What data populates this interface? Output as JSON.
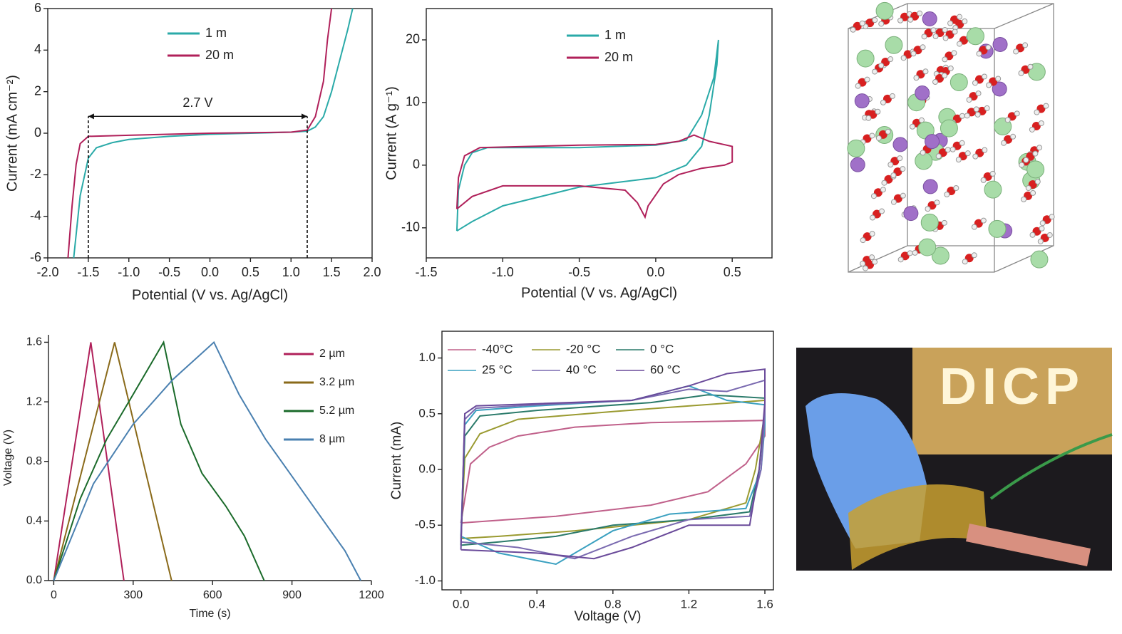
{
  "chart_data": [
    {
      "type": "line",
      "xlabel": "Potential (V vs. Ag/AgCl)",
      "ylabel": "Current (mA cm⁻²)",
      "xlim": [
        -2,
        2
      ],
      "ylim": [
        -6,
        6
      ],
      "xticks": [
        {
          "value": -2,
          "label": "-2.0"
        },
        -1.5,
        {
          "value": -1,
          "label": "-1.0"
        },
        -0.5,
        {
          "value": 0,
          "label": "0.0"
        },
        0.5,
        {
          "value": 1,
          "label": "1.0"
        },
        1.5,
        {
          "value": 2,
          "label": "2.0"
        }
      ],
      "yticks": [
        -6,
        -4,
        -2,
        0,
        2,
        4,
        6
      ],
      "legend": "upper left",
      "annotation": {
        "text": "2.7 V",
        "x_start": -1.5,
        "x_end": 1.2,
        "y": 0.4
      },
      "series": [
        {
          "name": "1 m",
          "color": "#2aaaa8",
          "x": [
            -1.68,
            -1.6,
            -1.5,
            -1.4,
            -1.2,
            -1.0,
            -0.5,
            0,
            0.5,
            1.0,
            1.2,
            1.3,
            1.4,
            1.5,
            1.6,
            1.7,
            1.76
          ],
          "values": [
            -6,
            -3,
            -1.2,
            -0.7,
            -0.45,
            -0.3,
            -0.15,
            -0.05,
            0,
            0.05,
            0.1,
            0.3,
            0.8,
            2,
            3.5,
            5,
            6
          ]
        },
        {
          "name": "20 m",
          "color": "#b0205a",
          "x": [
            -1.75,
            -1.7,
            -1.65,
            -1.6,
            -1.5,
            -1.0,
            0,
            1.0,
            1.2,
            1.3,
            1.4,
            1.45,
            1.5
          ],
          "values": [
            -6,
            -3.5,
            -1.5,
            -0.5,
            -0.15,
            -0.1,
            0,
            0.05,
            0.15,
            0.8,
            2.5,
            4.5,
            6
          ]
        }
      ]
    },
    {
      "type": "line",
      "xlabel": "Potential (V vs. Ag/AgCl)",
      "ylabel": "Current (A g⁻¹)",
      "xlim": [
        -1.5,
        0.76
      ],
      "ylim": [
        -14.8,
        25
      ],
      "xticks": [
        -1.5,
        {
          "value": -1,
          "label": "-1.0"
        },
        -0.5,
        {
          "value": 0,
          "label": "0.0"
        },
        0.5
      ],
      "yticks": [
        -10,
        0,
        10,
        20
      ],
      "legend": "upper left",
      "series": [
        {
          "name": "1 m",
          "color": "#2aaaa8",
          "x": [
            -1.3,
            -1.29,
            -1.25,
            -1.2,
            -1.1,
            -0.5,
            0,
            0.2,
            0.3,
            0.38,
            0.41,
            0.4,
            0.35,
            0.3,
            0.2,
            0.1,
            0,
            -0.5,
            -1.0,
            -1.2,
            -1.3
          ],
          "values": [
            -10.5,
            -4,
            0,
            2,
            2.8,
            2.8,
            3.2,
            4,
            8,
            14,
            20,
            16,
            8,
            3,
            0,
            -1,
            -2,
            -3.5,
            -6.5,
            -9,
            -10.5
          ]
        },
        {
          "name": "20 m",
          "color": "#b0205a",
          "x": [
            -1.3,
            -1.29,
            -1.25,
            -1.15,
            -0.5,
            0,
            0.15,
            0.25,
            0.35,
            0.5,
            0.5,
            0.45,
            0.3,
            0.15,
            0.05,
            -0.05,
            -0.07,
            -0.12,
            -0.2,
            -0.5,
            -1.0,
            -1.2,
            -1.3
          ],
          "values": [
            -7,
            -2,
            1.5,
            2.8,
            3.2,
            3.3,
            3.8,
            4.8,
            3.8,
            3,
            0.5,
            0,
            -0.5,
            -1.5,
            -3,
            -6.5,
            -8.3,
            -6,
            -4,
            -3.3,
            -3.3,
            -5,
            -7
          ]
        }
      ]
    },
    {
      "type": "line",
      "xlabel": "Time (s)",
      "ylabel": "Voltage (V)",
      "xlim": [
        -20,
        1200
      ],
      "ylim": [
        0,
        1.65
      ],
      "xticks": [
        0,
        300,
        600,
        900,
        1200
      ],
      "yticks": [
        {
          "value": 0,
          "label": "0.0"
        },
        0.4,
        0.8,
        1.2,
        1.6
      ],
      "legend": "upper right",
      "series": [
        {
          "name": "2 µm",
          "color": "#b0205a",
          "x": [
            0,
            140,
            265
          ],
          "values": [
            0,
            1.6,
            0
          ]
        },
        {
          "name": "3.2 µm",
          "color": "#8a6a1a",
          "x": [
            0,
            230,
            445
          ],
          "values": [
            0,
            1.6,
            0
          ]
        },
        {
          "name": "5.2 µm",
          "color": "#1a6a2a",
          "x": [
            0,
            100,
            200,
            300,
            415,
            480,
            560,
            650,
            720,
            795
          ],
          "values": [
            0,
            0.55,
            0.95,
            1.25,
            1.6,
            1.05,
            0.72,
            0.5,
            0.3,
            0
          ]
        },
        {
          "name": "8 µm",
          "color": "#4a80b0",
          "x": [
            0,
            150,
            300,
            450,
            605,
            700,
            800,
            900,
            1000,
            1100,
            1160
          ],
          "values": [
            0,
            0.65,
            1.05,
            1.35,
            1.6,
            1.25,
            0.95,
            0.7,
            0.45,
            0.2,
            0
          ]
        }
      ]
    },
    {
      "type": "line",
      "xlabel": "Voltage (V)",
      "ylabel": "Current (mA)",
      "xlim": [
        -0.1,
        1.645
      ],
      "ylim": [
        -1.08,
        1.24
      ],
      "xticks": [
        {
          "value": 0,
          "label": "0.0"
        },
        0.4,
        0.8,
        1.2,
        1.6
      ],
      "yticks": [
        {
          "value": -1,
          "label": "-1.0"
        },
        -0.5,
        {
          "value": 0,
          "label": "0.0"
        },
        0.5,
        {
          "value": 1,
          "label": "1.0"
        }
      ],
      "legend": "upper left",
      "series": [
        {
          "name": "-40°C",
          "color": "#c0608a",
          "x": [
            0,
            0.05,
            0.15,
            0.3,
            0.6,
            1.0,
            1.6,
            1.6,
            1.5,
            1.3,
            1.0,
            0.5,
            0
          ],
          "values": [
            -0.48,
            0.05,
            0.2,
            0.3,
            0.38,
            0.42,
            0.44,
            0.3,
            0.05,
            -0.2,
            -0.32,
            -0.42,
            -0.48
          ]
        },
        {
          "name": "-20 °C",
          "color": "#9a9a30",
          "x": [
            0,
            0.02,
            0.1,
            0.3,
            0.8,
            1.6,
            1.6,
            1.55,
            1.5,
            1.2,
            0.6,
            0.2,
            0
          ],
          "values": [
            -0.62,
            0.1,
            0.32,
            0.45,
            0.52,
            0.62,
            0.5,
            0,
            -0.3,
            -0.45,
            -0.55,
            -0.6,
            -0.62
          ]
        },
        {
          "name": "0 °C",
          "color": "#2a7a6a",
          "x": [
            0,
            0.02,
            0.1,
            0.4,
            1.0,
            1.3,
            1.6,
            1.6,
            1.57,
            1.52,
            1.2,
            0.8,
            0.5,
            0.2,
            0
          ],
          "values": [
            -0.68,
            0.3,
            0.48,
            0.53,
            0.6,
            0.67,
            0.64,
            0.5,
            0,
            -0.38,
            -0.45,
            -0.5,
            -0.6,
            -0.65,
            -0.68
          ]
        },
        {
          "name": "25 °C",
          "color": "#3aa0c0",
          "x": [
            0,
            0.02,
            0.08,
            0.4,
            0.9,
            1.2,
            1.4,
            1.6,
            1.6,
            1.58,
            1.5,
            1.1,
            0.8,
            0.5,
            0.2,
            0
          ],
          "values": [
            -0.6,
            0.4,
            0.53,
            0.57,
            0.62,
            0.75,
            0.62,
            0.58,
            0.4,
            0,
            -0.35,
            -0.4,
            -0.55,
            -0.85,
            -0.75,
            -0.6
          ]
        },
        {
          "name": "40 °C",
          "color": "#7a6ab0",
          "x": [
            0,
            0.02,
            0.08,
            0.4,
            0.9,
            1.2,
            1.4,
            1.6,
            1.6,
            1.58,
            1.52,
            1.2,
            0.9,
            0.6,
            0.3,
            0
          ],
          "values": [
            -0.65,
            0.45,
            0.55,
            0.58,
            0.62,
            0.72,
            0.7,
            0.8,
            0.5,
            0,
            -0.42,
            -0.45,
            -0.6,
            -0.8,
            -0.7,
            -0.65
          ]
        },
        {
          "name": "60 °C",
          "color": "#6a4a9a",
          "x": [
            0,
            0.02,
            0.08,
            0.4,
            0.9,
            1.2,
            1.4,
            1.6,
            1.6,
            1.57,
            1.52,
            1.2,
            0.9,
            0.7,
            0.4,
            0
          ],
          "values": [
            -0.72,
            0.5,
            0.57,
            0.59,
            0.62,
            0.75,
            0.86,
            0.9,
            0.6,
            0,
            -0.5,
            -0.5,
            -0.7,
            -0.8,
            -0.75,
            -0.72
          ]
        }
      ]
    }
  ],
  "photo": {
    "sign": "DICP"
  }
}
